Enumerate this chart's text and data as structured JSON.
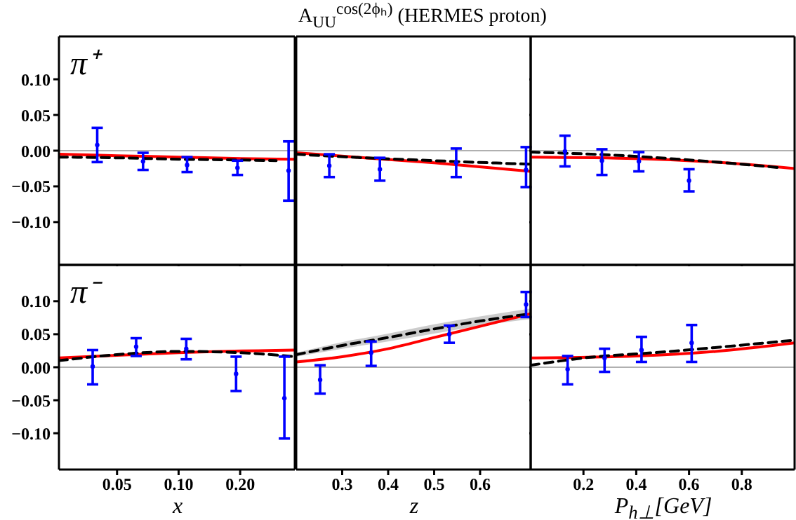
{
  "chart_data": [
    {
      "type": "scatter",
      "annotations": [
        "π⁺"
      ],
      "log": "x",
      "tick_labels": "y",
      "xlim": [
        0.026,
        0.37
      ],
      "xticks": [
        {
          "value": 0.05,
          "label": null
        },
        {
          "value": 0.1,
          "label": null
        },
        {
          "value": 0.2,
          "label": null
        }
      ],
      "ylim": [
        -0.16,
        0.16
      ],
      "yticks": [
        {
          "value": 0.1,
          "label": "0.10"
        },
        {
          "value": 0.05,
          "label": "0.05"
        },
        {
          "value": 0,
          "label": "0.00"
        },
        {
          "value": -0.05,
          "label": "−0.05"
        },
        {
          "value": -0.1,
          "label": "−0.10"
        }
      ],
      "ref_lines": [
        {
          "axis": "y",
          "value": 0,
          "color": "#b0b0b0"
        }
      ],
      "series": [
        {
          "type": "line",
          "color": "#ff0000",
          "line_style": "solid",
          "x": [
            0.026,
            0.05,
            0.1,
            0.2,
            0.37
          ],
          "values": [
            -0.005,
            -0.007,
            -0.009,
            -0.011,
            -0.012
          ]
        },
        {
          "type": "line",
          "color": "#000000",
          "line_style": "dashed",
          "x": [
            0.026,
            0.05,
            0.1,
            0.2,
            0.3
          ],
          "values": [
            -0.009,
            -0.01,
            -0.012,
            -0.013,
            -0.014
          ]
        },
        {
          "type": "scatter",
          "color": "#0000ff",
          "marker": "circle",
          "x": [
            0.04,
            0.067,
            0.11,
            0.194,
            0.345
          ],
          "values": [
            0.008,
            -0.015,
            -0.02,
            -0.024,
            -0.028
          ],
          "errors": [
            [
              -0.016,
              0.032
            ],
            [
              -0.027,
              -0.003
            ],
            [
              -0.03,
              -0.009
            ],
            [
              -0.034,
              -0.014
            ],
            [
              -0.07,
              0.013
            ]
          ]
        }
      ]
    },
    {
      "type": "scatter",
      "title": "A$_{UU}$$^{cos(2ϕₕ)}$ (HERMES proton)",
      "tick_labels": false,
      "xlim": [
        0.2,
        0.71
      ],
      "xticks": [
        {
          "value": 0.3,
          "label": null
        },
        {
          "value": 0.4,
          "label": null
        },
        {
          "value": 0.5,
          "label": null
        },
        {
          "value": 0.6,
          "label": null
        }
      ],
      "ylim": [
        -0.16,
        0.16
      ],
      "yticks": [
        {
          "value": 0.1,
          "label": null
        },
        {
          "value": 0.05,
          "label": null
        },
        {
          "value": 0,
          "label": null
        },
        {
          "value": -0.05,
          "label": null
        },
        {
          "value": -0.1,
          "label": null
        }
      ],
      "ref_lines": [
        {
          "axis": "y",
          "value": 0,
          "color": "#b0b0b0"
        }
      ],
      "series": [
        {
          "type": "line",
          "color": "#ff0000",
          "line_style": "solid",
          "x": [
            0.2,
            0.35,
            0.5,
            0.71
          ],
          "values": [
            -0.003,
            -0.01,
            -0.017,
            -0.029
          ]
        },
        {
          "type": "line",
          "color": "#000000",
          "line_style": "dashed",
          "x": [
            0.2,
            0.35,
            0.5,
            0.71
          ],
          "values": [
            -0.005,
            -0.01,
            -0.014,
            -0.019
          ]
        },
        {
          "type": "scatter",
          "color": "#0000ff",
          "marker": "circle",
          "x": [
            0.272,
            0.382,
            0.548,
            0.7
          ],
          "values": [
            -0.021,
            -0.026,
            -0.017,
            -0.027
          ],
          "errors": [
            [
              -0.037,
              -0.005
            ],
            [
              -0.042,
              -0.01
            ],
            [
              -0.037,
              0.003
            ],
            [
              -0.051,
              0.005
            ]
          ]
        }
      ]
    },
    {
      "type": "scatter",
      "tick_labels": false,
      "xlim": [
        0,
        1
      ],
      "xticks": [
        {
          "value": 0.2,
          "label": null
        },
        {
          "value": 0.4,
          "label": null
        },
        {
          "value": 0.6,
          "label": null
        },
        {
          "value": 0.8,
          "label": null
        }
      ],
      "ylim": [
        -0.16,
        0.16
      ],
      "yticks": [
        {
          "value": 0.1,
          "label": null
        },
        {
          "value": 0.05,
          "label": null
        },
        {
          "value": 0,
          "label": null
        },
        {
          "value": -0.05,
          "label": null
        },
        {
          "value": -0.1,
          "label": null
        }
      ],
      "ref_lines": [
        {
          "axis": "y",
          "value": 0,
          "color": "#b0b0b0"
        }
      ],
      "series": [
        {
          "type": "line",
          "color": "#ff0000",
          "line_style": "solid",
          "x": [
            0,
            0.4,
            0.7,
            1
          ],
          "values": [
            -0.009,
            -0.011,
            -0.016,
            -0.025
          ]
        },
        {
          "type": "line",
          "color": "#000000",
          "line_style": "dashed",
          "x": [
            0,
            0.3,
            0.6,
            0.95
          ],
          "values": [
            -0.002,
            -0.006,
            -0.013,
            -0.024
          ]
        },
        {
          "type": "scatter",
          "color": "#0000ff",
          "marker": "circle",
          "x": [
            0.13,
            0.27,
            0.41,
            0.6
          ],
          "values": [
            -0.001,
            -0.014,
            -0.015,
            -0.042
          ],
          "errors": [
            [
              -0.022,
              0.021
            ],
            [
              -0.034,
              0.002
            ],
            [
              -0.029,
              -0.002
            ],
            [
              -0.057,
              -0.026
            ]
          ]
        }
      ]
    },
    {
      "type": "scatter",
      "annotations": [
        "π⁻"
      ],
      "xlabel": "x",
      "log": "x",
      "xlim": [
        0.026,
        0.37
      ],
      "xticks": [
        0.05,
        {
          "value": 0.1,
          "label": "0.10"
        },
        {
          "value": 0.2,
          "label": "0.20"
        }
      ],
      "ylim": [
        -0.155,
        0.155
      ],
      "yticks": [
        {
          "value": 0.1,
          "label": "0.10"
        },
        {
          "value": 0.05,
          "label": "0.05"
        },
        {
          "value": 0,
          "label": "0.00"
        },
        {
          "value": -0.05,
          "label": "−0.05"
        },
        {
          "value": -0.1,
          "label": "−0.10"
        }
      ],
      "ref_lines": [
        {
          "axis": "y",
          "value": 0,
          "color": "#b0b0b0"
        }
      ],
      "series": [
        {
          "type": "line",
          "color": "#ff0000",
          "line_style": "solid",
          "x": [
            0.026,
            0.05,
            0.1,
            0.37
          ],
          "values": [
            0.014,
            0.018,
            0.022,
            0.026
          ]
        },
        {
          "type": "line",
          "color": "#000000",
          "line_style": "dashed",
          "x": [
            0.026,
            0.06,
            0.1,
            0.2,
            0.37
          ],
          "values": [
            0.01,
            0.021,
            0.024,
            0.022,
            0.016
          ]
        },
        {
          "type": "scatter",
          "color": "#0000ff",
          "marker": "circle",
          "x": [
            0.038,
            0.062,
            0.109,
            0.191,
            0.329
          ],
          "values": [
            0.001,
            0.031,
            0.028,
            -0.01,
            -0.047
          ],
          "errors": [
            [
              -0.026,
              0.026
            ],
            [
              0.017,
              0.044
            ],
            [
              0.012,
              0.043
            ],
            [
              -0.036,
              0.016
            ],
            [
              -0.108,
              0.016
            ]
          ]
        }
      ]
    },
    {
      "type": "scatter",
      "xlabel": "z",
      "tick_labels": "x",
      "xlim": [
        0.2,
        0.71
      ],
      "xticks": [
        0.3,
        0.4,
        0.5,
        0.6
      ],
      "ylim": [
        -0.155,
        0.155
      ],
      "yticks": [
        {
          "value": 0.1,
          "label": null
        },
        {
          "value": 0.05,
          "label": null
        },
        {
          "value": 0,
          "label": null
        },
        {
          "value": -0.05,
          "label": null
        },
        {
          "value": -0.1,
          "label": null
        }
      ],
      "ref_lines": [
        {
          "axis": "y",
          "value": 0,
          "color": "#b0b0b0"
        }
      ],
      "series": [
        {
          "type": "line",
          "color": "#ff0000",
          "line_style": "solid",
          "x": [
            0.2,
            0.3,
            0.4,
            0.5,
            0.6,
            0.71
          ],
          "values": [
            0.008,
            0.016,
            0.028,
            0.045,
            0.062,
            0.081
          ]
        },
        {
          "type": "line",
          "color": "#000000",
          "line_style": "dashed",
          "x": [
            0.2,
            0.3,
            0.4,
            0.5,
            0.6,
            0.71
          ],
          "values": [
            0.019,
            0.033,
            0.045,
            0.058,
            0.07,
            0.081
          ],
          "lower": [
            0.016,
            0.028,
            0.039,
            0.051,
            0.063,
            0.073
          ],
          "upper": [
            0.022,
            0.038,
            0.051,
            0.065,
            0.077,
            0.089
          ]
        },
        {
          "type": "scatter",
          "color": "#0000ff",
          "marker": "circle",
          "x": [
            0.252,
            0.363,
            0.533,
            0.7
          ],
          "values": [
            -0.019,
            0.022,
            0.05,
            0.095
          ],
          "errors": [
            [
              -0.04,
              0.003
            ],
            [
              0.002,
              0.039
            ],
            [
              0.037,
              0.063
            ],
            [
              0.076,
              0.114
            ]
          ]
        }
      ]
    },
    {
      "type": "scatter",
      "xlabel": "P$_{h⊥}$[GeV]",
      "tick_labels": "x",
      "xlim": [
        0,
        1
      ],
      "xticks": [
        0.2,
        0.4,
        0.6,
        0.8
      ],
      "ylim": [
        -0.155,
        0.155
      ],
      "yticks": [
        {
          "value": 0.1,
          "label": null
        },
        {
          "value": 0.05,
          "label": null
        },
        {
          "value": 0,
          "label": null
        },
        {
          "value": -0.05,
          "label": null
        },
        {
          "value": -0.1,
          "label": null
        }
      ],
      "ref_lines": [
        {
          "axis": "y",
          "value": 0,
          "color": "#b0b0b0"
        }
      ],
      "series": [
        {
          "type": "line",
          "color": "#ff0000",
          "line_style": "solid",
          "x": [
            0,
            0.4,
            0.7,
            1
          ],
          "values": [
            0.014,
            0.017,
            0.024,
            0.037
          ]
        },
        {
          "type": "line",
          "color": "#000000",
          "line_style": "dashed",
          "x": [
            0,
            0.2,
            0.5,
            1
          ],
          "values": [
            0.003,
            0.014,
            0.023,
            0.041
          ]
        },
        {
          "type": "scatter",
          "color": "#0000ff",
          "marker": "circle",
          "x": [
            0.14,
            0.28,
            0.42,
            0.61
          ],
          "values": [
            -0.003,
            0.014,
            0.026,
            0.037
          ],
          "errors": [
            [
              -0.026,
              0.017
            ],
            [
              -0.007,
              0.028
            ],
            [
              0.008,
              0.046
            ],
            [
              0.008,
              0.064
            ]
          ]
        }
      ]
    }
  ]
}
